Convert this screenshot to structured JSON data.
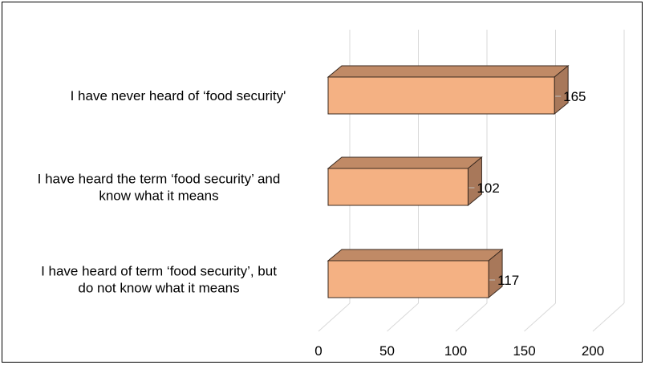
{
  "chart_data": {
    "type": "bar",
    "orientation": "horizontal",
    "style": "3d",
    "categories": [
      [
        "I have never heard of ‘food security'"
      ],
      [
        "I have heard the term ‘food security’ and",
        "know what it means"
      ],
      [
        "I have heard of term ‘food security’, but",
        "do not know what it means"
      ]
    ],
    "values": [
      165,
      102,
      117
    ],
    "title": "",
    "xlabel": "",
    "ylabel": "",
    "xlim": [
      0,
      200
    ],
    "ticks": [
      0,
      50,
      100,
      150,
      200
    ],
    "grid": true,
    "legend": "none",
    "data_labels": true,
    "colors": {
      "bar_front": "#f4b183",
      "bar_top": "#c08a66",
      "bar_side": "#a8785a",
      "bar_edge": "#3a2a20",
      "grid": "#d9d9d9",
      "frame": "#000000"
    }
  }
}
